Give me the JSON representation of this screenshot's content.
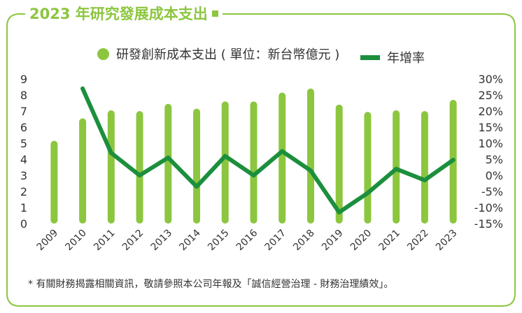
{
  "title": "2023 年研究發展成本支出",
  "note": "* 有關財務揭露相關資訊，敬請參照本公司年報及「誠信經營治理 - 財務治理績效」。",
  "colors": {
    "bar": "#8cc63f",
    "line": "#1c8f3d",
    "frame": "#8cc63f"
  },
  "chart_data": {
    "type": "bar",
    "categories": [
      "2009",
      "2010",
      "2011",
      "2012",
      "2013",
      "2014",
      "2015",
      "2016",
      "2017",
      "2018",
      "2019",
      "2020",
      "2021",
      "2022",
      "2023"
    ],
    "series": [
      {
        "name": "研發創新成本支出 ( 單位：新台幣億元 )",
        "type": "bar",
        "axis": "left",
        "values": [
          5.15,
          6.55,
          7.05,
          7.0,
          7.45,
          7.15,
          7.6,
          7.6,
          8.15,
          8.4,
          7.4,
          6.95,
          7.05,
          7.0,
          7.7
        ]
      },
      {
        "name": "年增率",
        "type": "line",
        "axis": "right",
        "values": [
          null,
          27.0,
          7.0,
          0.0,
          5.5,
          -3.5,
          6.0,
          0.0,
          7.5,
          1.5,
          -11.5,
          -5.5,
          2.0,
          -1.5,
          4.8
        ]
      }
    ],
    "y_left": {
      "ylim": [
        0,
        9
      ],
      "ticks": [
        "0",
        "1",
        "2",
        "3",
        "4",
        "5",
        "6",
        "7",
        "8",
        "9"
      ]
    },
    "y_right": {
      "ylim": [
        -15,
        30
      ],
      "ticks": [
        "-15%",
        "-10%",
        "-5%",
        "0%",
        "5%",
        "10%",
        "15%",
        "20%",
        "25%",
        "30%"
      ]
    },
    "legend": "top-center",
    "grid": false
  }
}
